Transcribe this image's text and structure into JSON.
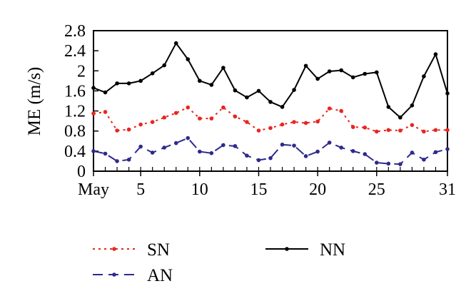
{
  "chart_data": {
    "type": "line",
    "xlabel": "",
    "ylabel": "ME (m/s)",
    "xlim": [
      1,
      31
    ],
    "ylim": [
      0,
      2.8
    ],
    "x_ticks": [
      1,
      5,
      10,
      15,
      20,
      25,
      31
    ],
    "x_tick_labels": [
      "May",
      "5",
      "10",
      "15",
      "20",
      "25",
      "31"
    ],
    "y_ticks": [
      0,
      0.4,
      0.8,
      1.2,
      1.6,
      2,
      2.4,
      2.8
    ],
    "y_tick_labels": [
      "0",
      "0.4",
      "0.8",
      "1.2",
      "1.6",
      "2",
      "2.4",
      "2.8"
    ],
    "grid": false,
    "legend_position": "bottom",
    "x": [
      1,
      2,
      3,
      4,
      5,
      6,
      7,
      8,
      9,
      10,
      11,
      12,
      13,
      14,
      15,
      16,
      17,
      18,
      19,
      20,
      21,
      22,
      23,
      24,
      25,
      26,
      27,
      28,
      29,
      30,
      31
    ],
    "series": [
      {
        "name": "SN",
        "color": "#e8261f",
        "style": "dotted",
        "values": [
          1.15,
          1.18,
          0.81,
          0.83,
          0.93,
          0.98,
          1.07,
          1.16,
          1.27,
          1.05,
          1.05,
          1.27,
          1.09,
          0.98,
          0.81,
          0.86,
          0.93,
          0.98,
          0.96,
          0.99,
          1.25,
          1.2,
          0.88,
          0.87,
          0.79,
          0.82,
          0.81,
          0.92,
          0.79,
          0.82,
          0.82
        ]
      },
      {
        "name": "AN",
        "color": "#2e2a8c",
        "style": "dashed",
        "values": [
          0.4,
          0.35,
          0.2,
          0.23,
          0.49,
          0.37,
          0.47,
          0.56,
          0.66,
          0.39,
          0.36,
          0.52,
          0.5,
          0.31,
          0.22,
          0.26,
          0.53,
          0.51,
          0.3,
          0.39,
          0.57,
          0.47,
          0.4,
          0.34,
          0.17,
          0.15,
          0.14,
          0.37,
          0.23,
          0.38,
          0.44
        ]
      },
      {
        "name": "NN",
        "color": "#000000",
        "style": "solid",
        "values": [
          1.66,
          1.57,
          1.75,
          1.75,
          1.8,
          1.95,
          2.11,
          2.55,
          2.23,
          1.8,
          1.72,
          2.06,
          1.61,
          1.47,
          1.6,
          1.38,
          1.28,
          1.62,
          2.1,
          1.84,
          1.99,
          2.01,
          1.87,
          1.94,
          1.97,
          1.28,
          1.07,
          1.31,
          1.89,
          2.33,
          1.55
        ]
      }
    ]
  }
}
